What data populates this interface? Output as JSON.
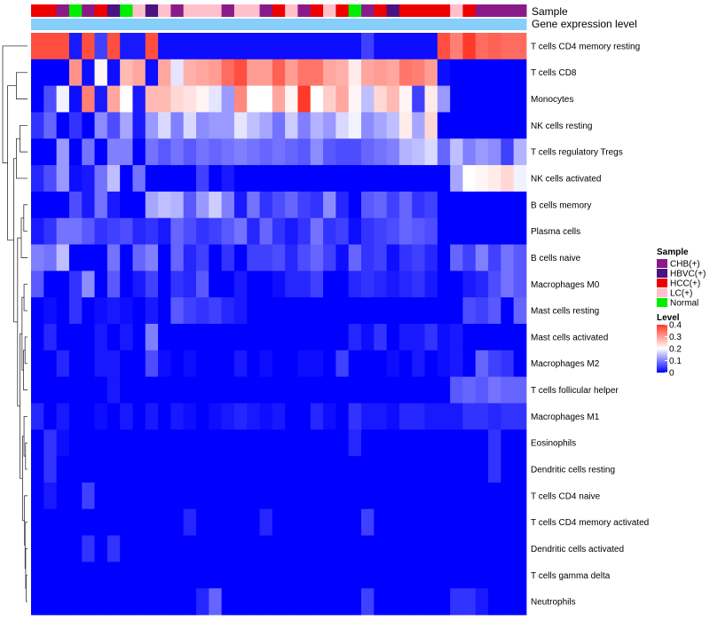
{
  "chart_data": {
    "type": "heatmap",
    "title": "",
    "annotation_labels": {
      "sample": "Sample",
      "gene_expression": "Gene expression level"
    },
    "rows": [
      "T cells CD4 memory resting",
      "T cells CD8",
      "Monocytes",
      "NK cells resting",
      "T cells regulatory  Tregs",
      "NK cells activated",
      "B cells memory",
      "Plasma cells",
      "B cells naive",
      "Macrophages M0",
      "Mast cells resting",
      "Mast cells activated",
      "Macrophages M2",
      "T cells follicular helper",
      "Macrophages M1",
      "Eosinophils",
      "Dendritic cells resting",
      "T cells CD4 naive",
      "T cells CD4 memory activated",
      "Dendritic cells activated",
      "T cells gamma delta",
      "Neutrophils"
    ],
    "sample_groups": [
      "HCC(+)",
      "HCC(+)",
      "CHB(+)",
      "Normal",
      "CHB(+)",
      "HCC(+)",
      "HBVC(+)",
      "Normal",
      "LC(+)",
      "HBVC(+)",
      "LC(+)",
      "CHB(+)",
      "LC(+)",
      "LC(+)",
      "LC(+)",
      "CHB(+)",
      "LC(+)",
      "LC(+)",
      "CHB(+)",
      "HCC(+)",
      "LC(+)",
      "CHB(+)",
      "HCC(+)",
      "LC(+)",
      "HCC(+)",
      "Normal",
      "CHB(+)",
      "HCC(+)",
      "HBVC(+)",
      "HCC(+)",
      "HCC(+)",
      "HCC(+)",
      "HCC(+)",
      "LC(+)",
      "HCC(+)",
      "CHB(+)",
      "CHB(+)",
      "CHB(+)",
      "CHB(+)"
    ],
    "gene_expression_groups": [
      "low",
      "low",
      "low",
      "low",
      "low",
      "low",
      "low",
      "low",
      "low",
      "low",
      "low",
      "low",
      "low",
      "low",
      "low",
      "low",
      "low",
      "low",
      "low",
      "low",
      "low",
      "low",
      "low",
      "low",
      "low",
      "low",
      "low",
      "low",
      "low",
      "low",
      "low",
      "low",
      "high",
      "high",
      "high",
      "high",
      "high",
      "high",
      "high"
    ],
    "values": [
      [
        0.38,
        0.38,
        0.38,
        0.02,
        0.38,
        0.05,
        0.38,
        0.02,
        0.02,
        0.38,
        0.01,
        0.01,
        0.01,
        0.01,
        0.01,
        0.01,
        0.01,
        0.01,
        0.01,
        0.01,
        0.01,
        0.01,
        0.01,
        0.01,
        0.01,
        0.01,
        0.05,
        0.01,
        0.01,
        0.01,
        0.01,
        0.01,
        0.38,
        0.33,
        0.4,
        0.35,
        0.36,
        0.35,
        0.35
      ],
      [
        0.0,
        0.0,
        0.0,
        0.31,
        0.01,
        0.21,
        0.01,
        0.27,
        0.29,
        0.01,
        0.29,
        0.18,
        0.28,
        0.29,
        0.3,
        0.35,
        0.38,
        0.3,
        0.3,
        0.36,
        0.3,
        0.34,
        0.34,
        0.29,
        0.28,
        0.22,
        0.29,
        0.3,
        0.29,
        0.34,
        0.33,
        0.3,
        0.01,
        0.0,
        0.0,
        0.0,
        0.0,
        0.0,
        0.0
      ],
      [
        0.0,
        0.06,
        0.19,
        0.01,
        0.33,
        0.02,
        0.29,
        0.2,
        0.02,
        0.27,
        0.27,
        0.24,
        0.23,
        0.21,
        0.18,
        0.12,
        0.32,
        0.2,
        0.2,
        0.29,
        0.21,
        0.4,
        0.2,
        0.25,
        0.29,
        0.21,
        0.15,
        0.24,
        0.27,
        0.21,
        0.05,
        0.22,
        0.12,
        0.0,
        0.0,
        0.0,
        0.0,
        0.0,
        0.0
      ],
      [
        0.04,
        0.08,
        0.0,
        0.04,
        0.0,
        0.11,
        0.06,
        0.13,
        0.02,
        0.12,
        0.17,
        0.1,
        0.17,
        0.11,
        0.12,
        0.12,
        0.18,
        0.15,
        0.13,
        0.09,
        0.16,
        0.1,
        0.14,
        0.12,
        0.17,
        0.19,
        0.11,
        0.13,
        0.15,
        0.22,
        0.13,
        0.24,
        0.0,
        0.0,
        0.0,
        0.0,
        0.0,
        0.0,
        0.0
      ],
      [
        0.0,
        0.0,
        0.12,
        0.0,
        0.09,
        0.0,
        0.1,
        0.1,
        0.0,
        0.09,
        0.07,
        0.09,
        0.07,
        0.09,
        0.08,
        0.09,
        0.1,
        0.09,
        0.08,
        0.09,
        0.08,
        0.07,
        0.11,
        0.07,
        0.06,
        0.06,
        0.08,
        0.09,
        0.1,
        0.14,
        0.15,
        0.17,
        0.08,
        0.15,
        0.1,
        0.12,
        0.11,
        0.05,
        0.14
      ],
      [
        0.03,
        0.06,
        0.12,
        0.01,
        0.02,
        0.09,
        0.15,
        0.0,
        0.09,
        0.0,
        0.0,
        0.0,
        0.0,
        0.05,
        0.0,
        0.02,
        0.0,
        0.0,
        0.0,
        0.0,
        0.0,
        0.0,
        0.0,
        0.0,
        0.0,
        0.0,
        0.0,
        0.0,
        0.0,
        0.0,
        0.0,
        0.0,
        0.0,
        0.13,
        0.2,
        0.21,
        0.22,
        0.24,
        0.19
      ],
      [
        0.0,
        0.0,
        0.0,
        0.06,
        0.02,
        0.09,
        0.02,
        0.0,
        0.0,
        0.13,
        0.15,
        0.14,
        0.07,
        0.12,
        0.16,
        0.1,
        0.02,
        0.09,
        0.04,
        0.06,
        0.08,
        0.05,
        0.04,
        0.11,
        0.03,
        0.0,
        0.07,
        0.08,
        0.05,
        0.08,
        0.04,
        0.05,
        0.0,
        0.0,
        0.0,
        0.0,
        0.0,
        0.0,
        0.0
      ],
      [
        0.02,
        0.04,
        0.09,
        0.09,
        0.07,
        0.04,
        0.05,
        0.06,
        0.03,
        0.04,
        0.02,
        0.08,
        0.06,
        0.04,
        0.05,
        0.07,
        0.09,
        0.03,
        0.08,
        0.04,
        0.02,
        0.04,
        0.09,
        0.04,
        0.05,
        0.01,
        0.04,
        0.05,
        0.06,
        0.08,
        0.07,
        0.06,
        0.0,
        0.0,
        0.0,
        0.0,
        0.0,
        0.0,
        0.0
      ],
      [
        0.1,
        0.09,
        0.15,
        0.0,
        0.0,
        0.0,
        0.09,
        0.0,
        0.08,
        0.1,
        0.0,
        0.08,
        0.03,
        0.05,
        0.0,
        0.04,
        0.0,
        0.05,
        0.05,
        0.06,
        0.03,
        0.06,
        0.08,
        0.05,
        0.01,
        0.08,
        0.04,
        0.05,
        0.01,
        0.04,
        0.05,
        0.03,
        0.0,
        0.08,
        0.05,
        0.1,
        0.05,
        0.09,
        0.07
      ],
      [
        0.07,
        0.0,
        0.0,
        0.04,
        0.11,
        0.0,
        0.07,
        0.0,
        0.02,
        0.05,
        0.0,
        0.04,
        0.03,
        0.07,
        0.0,
        0.0,
        0.02,
        0.0,
        0.0,
        0.01,
        0.03,
        0.03,
        0.05,
        0.0,
        0.0,
        0.03,
        0.04,
        0.03,
        0.02,
        0.03,
        0.04,
        0.02,
        0.0,
        0.0,
        0.02,
        0.03,
        0.06,
        0.09,
        0.07
      ],
      [
        0.0,
        0.01,
        0.0,
        0.04,
        0.0,
        0.01,
        0.02,
        0.01,
        0.0,
        0.02,
        0.0,
        0.07,
        0.05,
        0.04,
        0.05,
        0.03,
        0.02,
        0.0,
        0.0,
        0.0,
        0.0,
        0.0,
        0.0,
        0.0,
        0.0,
        0.0,
        0.0,
        0.0,
        0.0,
        0.0,
        0.0,
        0.0,
        0.0,
        0.0,
        0.06,
        0.05,
        0.07,
        0.0,
        0.08
      ],
      [
        0.0,
        0.03,
        0.0,
        0.0,
        0.0,
        0.02,
        0.0,
        0.02,
        0.0,
        0.1,
        0.0,
        0.0,
        0.0,
        0.0,
        0.0,
        0.0,
        0.0,
        0.0,
        0.0,
        0.0,
        0.0,
        0.0,
        0.0,
        0.0,
        0.0,
        0.03,
        0.01,
        0.04,
        0.0,
        0.02,
        0.02,
        0.04,
        0.01,
        0.02,
        0.0,
        0.0,
        0.0,
        0.0,
        0.0
      ],
      [
        0.0,
        0.0,
        0.03,
        0.0,
        0.0,
        0.02,
        0.02,
        0.0,
        0.0,
        0.06,
        0.01,
        0.0,
        0.01,
        0.0,
        0.0,
        0.0,
        0.02,
        0.0,
        0.01,
        0.0,
        0.0,
        0.01,
        0.01,
        0.0,
        0.05,
        0.0,
        0.0,
        0.0,
        0.01,
        0.0,
        0.02,
        0.0,
        0.01,
        0.02,
        0.0,
        0.08,
        0.05,
        0.04,
        0.0
      ],
      [
        0.0,
        0.0,
        0.0,
        0.0,
        0.0,
        0.0,
        0.02,
        0.0,
        0.0,
        0.0,
        0.0,
        0.0,
        0.0,
        0.0,
        0.0,
        0.0,
        0.0,
        0.0,
        0.0,
        0.0,
        0.0,
        0.0,
        0.0,
        0.0,
        0.0,
        0.0,
        0.0,
        0.0,
        0.0,
        0.0,
        0.0,
        0.0,
        0.0,
        0.07,
        0.08,
        0.07,
        0.09,
        0.08,
        0.08
      ],
      [
        0.03,
        0.0,
        0.02,
        0.0,
        0.0,
        0.01,
        0.0,
        0.02,
        0.0,
        0.02,
        0.0,
        0.02,
        0.01,
        0.0,
        0.01,
        0.02,
        0.03,
        0.02,
        0.01,
        0.02,
        0.0,
        0.0,
        0.03,
        0.01,
        0.0,
        0.04,
        0.02,
        0.02,
        0.01,
        0.03,
        0.03,
        0.02,
        0.02,
        0.02,
        0.04,
        0.04,
        0.03,
        0.04,
        0.04
      ],
      [
        0.0,
        0.04,
        0.01,
        0.0,
        0.0,
        0.0,
        0.0,
        0.0,
        0.0,
        0.0,
        0.0,
        0.0,
        0.0,
        0.0,
        0.0,
        0.0,
        0.0,
        0.0,
        0.0,
        0.0,
        0.0,
        0.0,
        0.0,
        0.0,
        0.0,
        0.03,
        0.0,
        0.0,
        0.0,
        0.0,
        0.0,
        0.0,
        0.0,
        0.0,
        0.0,
        0.0,
        0.04,
        0.0,
        0.0
      ],
      [
        0.0,
        0.04,
        0.0,
        0.0,
        0.0,
        0.0,
        0.0,
        0.0,
        0.0,
        0.0,
        0.0,
        0.0,
        0.0,
        0.0,
        0.0,
        0.0,
        0.0,
        0.0,
        0.0,
        0.0,
        0.0,
        0.0,
        0.0,
        0.0,
        0.0,
        0.0,
        0.0,
        0.0,
        0.0,
        0.0,
        0.0,
        0.0,
        0.0,
        0.0,
        0.0,
        0.0,
        0.04,
        0.0,
        0.0
      ],
      [
        0.0,
        0.02,
        0.0,
        0.0,
        0.05,
        0.0,
        0.0,
        0.0,
        0.0,
        0.0,
        0.0,
        0.0,
        0.0,
        0.0,
        0.0,
        0.0,
        0.0,
        0.0,
        0.0,
        0.0,
        0.0,
        0.0,
        0.0,
        0.0,
        0.0,
        0.0,
        0.0,
        0.0,
        0.0,
        0.0,
        0.0,
        0.0,
        0.0,
        0.0,
        0.0,
        0.0,
        0.0,
        0.0,
        0.0
      ],
      [
        0.0,
        0.0,
        0.0,
        0.0,
        0.0,
        0.0,
        0.0,
        0.0,
        0.0,
        0.0,
        0.0,
        0.0,
        0.03,
        0.0,
        0.0,
        0.0,
        0.0,
        0.0,
        0.03,
        0.0,
        0.0,
        0.0,
        0.0,
        0.0,
        0.0,
        0.0,
        0.05,
        0.0,
        0.0,
        0.0,
        0.0,
        0.0,
        0.0,
        0.0,
        0.0,
        0.0,
        0.0,
        0.0,
        0.0
      ],
      [
        0.0,
        0.0,
        0.0,
        0.0,
        0.04,
        0.0,
        0.04,
        0.0,
        0.0,
        0.0,
        0.0,
        0.0,
        0.0,
        0.0,
        0.0,
        0.0,
        0.0,
        0.0,
        0.0,
        0.0,
        0.0,
        0.0,
        0.0,
        0.0,
        0.0,
        0.0,
        0.0,
        0.0,
        0.0,
        0.0,
        0.0,
        0.0,
        0.0,
        0.0,
        0.0,
        0.0,
        0.0,
        0.0,
        0.0
      ],
      [
        0.0,
        0.0,
        0.0,
        0.0,
        0.0,
        0.0,
        0.0,
        0.0,
        0.0,
        0.0,
        0.0,
        0.0,
        0.0,
        0.0,
        0.0,
        0.0,
        0.0,
        0.0,
        0.0,
        0.0,
        0.0,
        0.0,
        0.0,
        0.0,
        0.0,
        0.0,
        0.0,
        0.0,
        0.0,
        0.0,
        0.0,
        0.0,
        0.0,
        0.0,
        0.0,
        0.0,
        0.0,
        0.0,
        0.0
      ],
      [
        0.0,
        0.0,
        0.0,
        0.0,
        0.0,
        0.0,
        0.0,
        0.0,
        0.0,
        0.0,
        0.0,
        0.0,
        0.0,
        0.03,
        0.08,
        0.0,
        0.0,
        0.0,
        0.0,
        0.0,
        0.0,
        0.0,
        0.0,
        0.0,
        0.0,
        0.0,
        0.05,
        0.0,
        0.0,
        0.0,
        0.0,
        0.0,
        0.0,
        0.04,
        0.04,
        0.02,
        0.0,
        0.0,
        0.0
      ]
    ],
    "legend": {
      "sample_title": "Sample",
      "sample_entries": [
        {
          "label": "CHB(+)",
          "color": "#8B1A89"
        },
        {
          "label": "HBVC(+)",
          "color": "#4B1281"
        },
        {
          "label": "HCC(+)",
          "color": "#EE0000"
        },
        {
          "label": "LC(+)",
          "color": "#FFC0CB"
        },
        {
          "label": "Normal",
          "color": "#00EE00"
        }
      ],
      "level_title": "Level",
      "level_ticks": [
        "0.4",
        "0.3",
        "0.2",
        "0.1",
        "0"
      ],
      "level_tick_values": [
        0.4,
        0.3,
        0.2,
        0.1,
        0
      ]
    },
    "gene_expression_colors": {
      "low": "#87CEFA",
      "high": "#87CEFA"
    },
    "color_scale": {
      "min": 0,
      "max": 0.4,
      "low": "#0000FF",
      "mid": "#FFFFFF",
      "high": "#FF3A2A"
    },
    "dendrogram": "hierarchical clustering of rows (cell types), drawn at left"
  }
}
